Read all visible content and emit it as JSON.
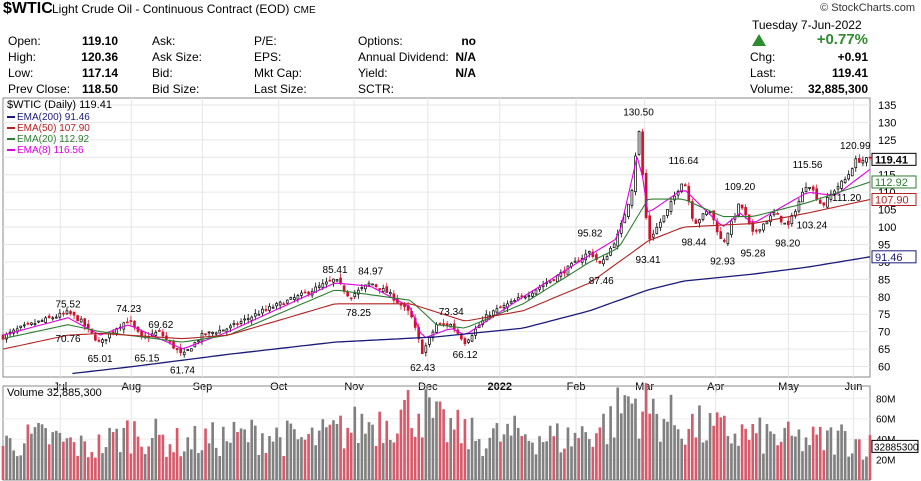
{
  "header": {
    "symbol": "$WTIC",
    "description": "Light Crude Oil - Continuous Contract (EOD)",
    "exchange": "CME",
    "brand": "© StockCharts.com",
    "date": "Tuesday  7-Jun-2022",
    "change_pct": "+0.77%",
    "change_color": "#2e8b2e",
    "rows": [
      {
        "l1": "Open:",
        "v1": "119.10",
        "l2": "Ask:",
        "v2": "",
        "l3": "P/E:",
        "v3": "",
        "l4": "Options:",
        "v4": "no",
        "l5": "",
        "v5": ""
      },
      {
        "l1": "High:",
        "v1": "120.36",
        "l2": "Ask Size:",
        "v2": "",
        "l3": "EPS:",
        "v3": "",
        "l4": "Annual Dividend:",
        "v4": "N/A",
        "l5": "Chg:",
        "v5": "+0.91"
      },
      {
        "l1": "Low:",
        "v1": "117.14",
        "l2": "Bid:",
        "v2": "",
        "l3": "Mkt Cap:",
        "v3": "",
        "l4": "Yield:",
        "v4": "N/A",
        "l5": "Last:",
        "v5": "119.41"
      },
      {
        "l1": "Prev Close:",
        "v1": "118.50",
        "l2": "Bid Size:",
        "v2": "",
        "l3": "Last Size:",
        "v3": "",
        "l4": "SCTR:",
        "v4": "",
        "l5": "Volume:",
        "v5": "32,885,300"
      }
    ]
  },
  "chart_data": [
    {
      "type": "candlestick",
      "title": "$WTIC (Daily) 119.41",
      "legend": [
        {
          "name": "EMA(200) 91.46",
          "color": "#1a1a7a"
        },
        {
          "name": "EMA(50) 107.90",
          "color": "#b22222"
        },
        {
          "name": "EMA(20) 112.92",
          "color": "#2e7d32"
        },
        {
          "name": "EMA(8) 116.56",
          "color": "#e000e0"
        }
      ],
      "y_ticks": [
        60,
        65,
        70,
        75,
        80,
        85,
        90,
        95,
        100,
        105,
        110,
        115,
        120,
        125,
        130,
        135
      ],
      "ylim": [
        57,
        137
      ],
      "x_labels": [
        "Jul",
        "Aug",
        "Sep",
        "Oct",
        "Nov",
        "Dec",
        "2022",
        "Feb",
        "Mar",
        "Apr",
        "May",
        "Jun"
      ],
      "x_label_pos": [
        0.066,
        0.148,
        0.23,
        0.318,
        0.405,
        0.49,
        0.573,
        0.661,
        0.74,
        0.822,
        0.906,
        0.981
      ],
      "annotations": [
        {
          "x": 0.075,
          "y": 75.52,
          "text": "75.52",
          "pos": "above"
        },
        {
          "x": 0.075,
          "y": 70.76,
          "text": "70.76",
          "pos": "below"
        },
        {
          "x": 0.112,
          "y": 65.01,
          "text": "65.01",
          "pos": "below"
        },
        {
          "x": 0.145,
          "y": 74.23,
          "text": "74.23",
          "pos": "above"
        },
        {
          "x": 0.182,
          "y": 69.62,
          "text": "69.62",
          "pos": "above"
        },
        {
          "x": 0.166,
          "y": 65.15,
          "text": "65.15",
          "pos": "below"
        },
        {
          "x": 0.207,
          "y": 61.74,
          "text": "61.74",
          "pos": "below"
        },
        {
          "x": 0.383,
          "y": 85.41,
          "text": "85.41",
          "pos": "above"
        },
        {
          "x": 0.424,
          "y": 84.97,
          "text": "84.97",
          "pos": "above"
        },
        {
          "x": 0.41,
          "y": 78.25,
          "text": "78.25",
          "pos": "below"
        },
        {
          "x": 0.517,
          "y": 73.34,
          "text": "73.34",
          "pos": "above"
        },
        {
          "x": 0.484,
          "y": 62.43,
          "text": "62.43",
          "pos": "below"
        },
        {
          "x": 0.533,
          "y": 66.12,
          "text": "66.12",
          "pos": "below"
        },
        {
          "x": 0.677,
          "y": 95.82,
          "text": "95.82",
          "pos": "above"
        },
        {
          "x": 0.69,
          "y": 87.46,
          "text": "87.46",
          "pos": "below"
        },
        {
          "x": 0.733,
          "y": 130.5,
          "text": "130.50",
          "pos": "above"
        },
        {
          "x": 0.785,
          "y": 116.64,
          "text": "116.64",
          "pos": "above"
        },
        {
          "x": 0.744,
          "y": 93.41,
          "text": "93.41",
          "pos": "below"
        },
        {
          "x": 0.797,
          "y": 98.44,
          "text": "98.44",
          "pos": "below"
        },
        {
          "x": 0.85,
          "y": 109.2,
          "text": "109.20",
          "pos": "above"
        },
        {
          "x": 0.83,
          "y": 92.93,
          "text": "92.93",
          "pos": "below"
        },
        {
          "x": 0.865,
          "y": 95.28,
          "text": "95.28",
          "pos": "below"
        },
        {
          "x": 0.928,
          "y": 115.56,
          "text": "115.56",
          "pos": "above"
        },
        {
          "x": 0.905,
          "y": 98.2,
          "text": "98.20",
          "pos": "below"
        },
        {
          "x": 0.933,
          "y": 103.24,
          "text": "103.24",
          "pos": "below"
        },
        {
          "x": 0.973,
          "y": 111.2,
          "text": "111.20",
          "pos": "below"
        },
        {
          "x": 0.983,
          "y": 120.99,
          "text": "120.99",
          "pos": "above"
        }
      ],
      "right_tags": [
        {
          "value": 119.41,
          "text": "119.41",
          "color": "#000000",
          "bold": true
        },
        {
          "value": 112.92,
          "text": "112.92",
          "color": "#2e7d32",
          "bold": false
        },
        {
          "value": 107.9,
          "text": "107.90",
          "color": "#b22222",
          "bold": false
        },
        {
          "value": 91.46,
          "text": "91.46",
          "color": "#1a1a7a",
          "bold": false
        }
      ],
      "series": [
        {
          "name": "price",
          "knots": [
            [
              0,
              68.5
            ],
            [
              0.02,
              71
            ],
            [
              0.05,
              73.5
            ],
            [
              0.075,
              75.5
            ],
            [
              0.09,
              73
            ],
            [
              0.112,
              66.5
            ],
            [
              0.13,
              71
            ],
            [
              0.145,
              73.5
            ],
            [
              0.16,
              68
            ],
            [
              0.18,
              70
            ],
            [
              0.207,
              63
            ],
            [
              0.23,
              69
            ],
            [
              0.26,
              71
            ],
            [
              0.3,
              76
            ],
            [
              0.34,
              80
            ],
            [
              0.383,
              85
            ],
            [
              0.4,
              80
            ],
            [
              0.424,
              84
            ],
            [
              0.445,
              81
            ],
            [
              0.47,
              75
            ],
            [
              0.484,
              64
            ],
            [
              0.5,
              72
            ],
            [
              0.517,
              72
            ],
            [
              0.533,
              67
            ],
            [
              0.56,
              75
            ],
            [
              0.6,
              80
            ],
            [
              0.64,
              86
            ],
            [
              0.677,
              93
            ],
            [
              0.69,
              89
            ],
            [
              0.71,
              98
            ],
            [
              0.725,
              110
            ],
            [
              0.733,
              129
            ],
            [
              0.744,
              96
            ],
            [
              0.765,
              104
            ],
            [
              0.785,
              114
            ],
            [
              0.797,
              101
            ],
            [
              0.815,
              105
            ],
            [
              0.83,
              95
            ],
            [
              0.85,
              107
            ],
            [
              0.865,
              98
            ],
            [
              0.89,
              104
            ],
            [
              0.905,
              100
            ],
            [
              0.928,
              113
            ],
            [
              0.945,
              106
            ],
            [
              0.96,
              111
            ],
            [
              0.973,
              114
            ],
            [
              0.983,
              119
            ],
            [
              1.0,
              119.4
            ]
          ]
        },
        {
          "name": "EMA(8)",
          "knots": [
            [
              0,
              69
            ],
            [
              0.075,
              74
            ],
            [
              0.112,
              69
            ],
            [
              0.145,
              72
            ],
            [
              0.207,
              65
            ],
            [
              0.26,
              70
            ],
            [
              0.383,
              84
            ],
            [
              0.424,
              83
            ],
            [
              0.47,
              77
            ],
            [
              0.484,
              68
            ],
            [
              0.517,
              71
            ],
            [
              0.533,
              69
            ],
            [
              0.6,
              80
            ],
            [
              0.677,
              92
            ],
            [
              0.71,
              97
            ],
            [
              0.733,
              122
            ],
            [
              0.744,
              104
            ],
            [
              0.785,
              111
            ],
            [
              0.83,
              100
            ],
            [
              0.85,
              104
            ],
            [
              0.865,
              101
            ],
            [
              0.928,
              110
            ],
            [
              0.96,
              109
            ],
            [
              1.0,
              116.56
            ]
          ]
        },
        {
          "name": "EMA(20)",
          "knots": [
            [
              0,
              68
            ],
            [
              0.075,
              72
            ],
            [
              0.112,
              70
            ],
            [
              0.207,
              67
            ],
            [
              0.26,
              69
            ],
            [
              0.383,
              82
            ],
            [
              0.47,
              79
            ],
            [
              0.5,
              72
            ],
            [
              0.533,
              71
            ],
            [
              0.6,
              78
            ],
            [
              0.677,
              90
            ],
            [
              0.71,
              94
            ],
            [
              0.744,
              108
            ],
            [
              0.785,
              108
            ],
            [
              0.83,
              103
            ],
            [
              0.865,
              103
            ],
            [
              0.928,
              107
            ],
            [
              1.0,
              112.92
            ]
          ]
        },
        {
          "name": "EMA(50)",
          "knots": [
            [
              0,
              65
            ],
            [
              0.075,
              69
            ],
            [
              0.112,
              69.5
            ],
            [
              0.207,
              68
            ],
            [
              0.26,
              69
            ],
            [
              0.383,
              78
            ],
            [
              0.47,
              78
            ],
            [
              0.533,
              73
            ],
            [
              0.6,
              76
            ],
            [
              0.677,
              84
            ],
            [
              0.744,
              96
            ],
            [
              0.785,
              100
            ],
            [
              0.865,
              101
            ],
            [
              0.928,
              104
            ],
            [
              1.0,
              107.9
            ]
          ]
        },
        {
          "name": "EMA(200)",
          "knots": [
            [
              0.08,
              58
            ],
            [
              0.15,
              60
            ],
            [
              0.26,
              63.5
            ],
            [
              0.383,
              67
            ],
            [
              0.5,
              68.5
            ],
            [
              0.6,
              71
            ],
            [
              0.677,
              76
            ],
            [
              0.744,
              82
            ],
            [
              0.785,
              84.5
            ],
            [
              0.865,
              86.5
            ],
            [
              0.928,
              88.5
            ],
            [
              1.0,
              91.46
            ]
          ]
        }
      ]
    },
    {
      "type": "bar",
      "title": "Volume 32,885,300",
      "y_ticks_labels": [
        "80M",
        "60M",
        "40M",
        "20M"
      ],
      "y_ticks": [
        80,
        60,
        40,
        20
      ],
      "ylim": [
        0,
        92
      ],
      "last_value": "32885300",
      "last_value_scaled": 32.9,
      "vol_knots": [
        [
          0,
          35
        ],
        [
          0.05,
          42
        ],
        [
          0.1,
          30
        ],
        [
          0.15,
          48
        ],
        [
          0.2,
          36
        ],
        [
          0.25,
          40
        ],
        [
          0.3,
          45
        ],
        [
          0.35,
          38
        ],
        [
          0.4,
          50
        ],
        [
          0.45,
          62
        ],
        [
          0.48,
          72
        ],
        [
          0.5,
          55
        ],
        [
          0.55,
          40
        ],
        [
          0.6,
          45
        ],
        [
          0.65,
          40
        ],
        [
          0.7,
          55
        ],
        [
          0.72,
          80
        ],
        [
          0.74,
          70
        ],
        [
          0.78,
          55
        ],
        [
          0.82,
          48
        ],
        [
          0.86,
          44
        ],
        [
          0.9,
          40
        ],
        [
          0.94,
          38
        ],
        [
          0.97,
          42
        ],
        [
          1.0,
          33
        ]
      ]
    }
  ]
}
